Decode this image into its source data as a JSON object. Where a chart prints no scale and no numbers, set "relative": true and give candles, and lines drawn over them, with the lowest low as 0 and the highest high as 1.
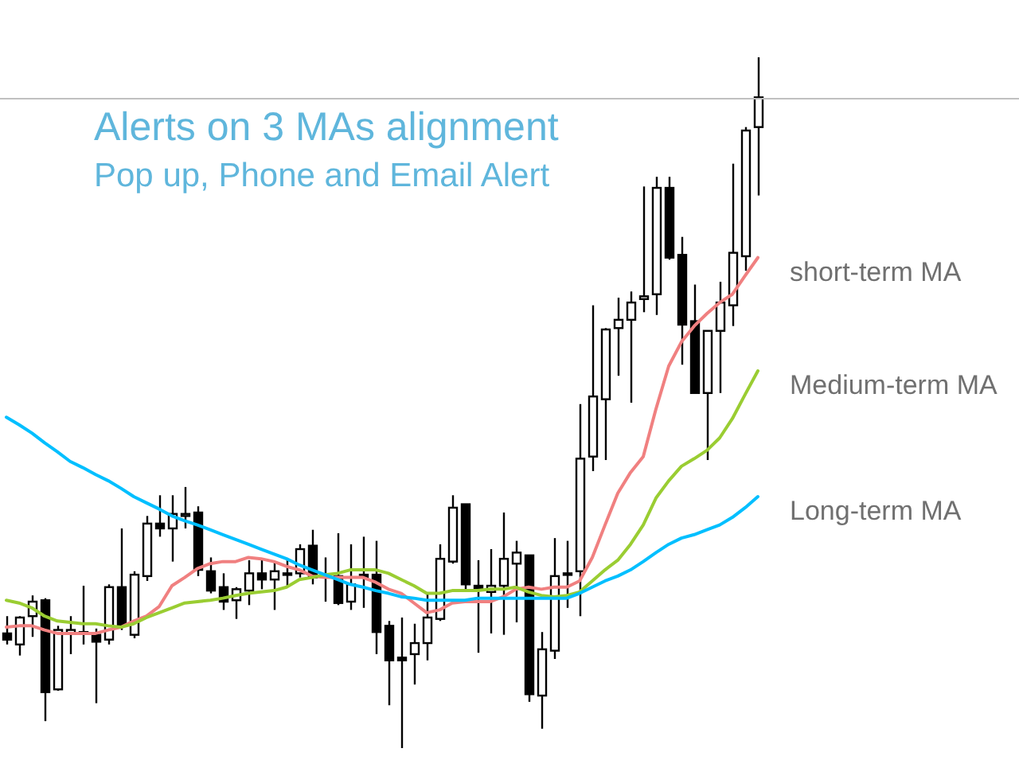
{
  "chart_data": {
    "type": "candlestick",
    "title": "Alerts on 3 MAs alignment",
    "subtitle": "Pop up, Phone and Email Alert",
    "relative": true,
    "categories": [
      null,
      null,
      null,
      null,
      null,
      null,
      null,
      null,
      null,
      null,
      null,
      null,
      null,
      null,
      null,
      null,
      null,
      null,
      null,
      null,
      null,
      null,
      null,
      null,
      null,
      null,
      null,
      null,
      null,
      null,
      null,
      null,
      null,
      null,
      null,
      null,
      null,
      null,
      null,
      null,
      null,
      null,
      null,
      null,
      null,
      null,
      null,
      null,
      null,
      null,
      null,
      null,
      null,
      null,
      null,
      null,
      null,
      null,
      null,
      null
    ],
    "ohlc": [
      [
        0.166,
        0.191,
        0.15,
        0.157
      ],
      [
        0.15,
        0.191,
        0.134,
        0.189
      ],
      [
        0.191,
        0.221,
        0.161,
        0.212
      ],
      [
        0.214,
        0.217,
        0.039,
        0.081
      ],
      [
        0.085,
        0.177,
        0.083,
        0.171
      ],
      [
        0.166,
        0.191,
        0.136,
        0.171
      ],
      [
        0.166,
        0.235,
        0.15,
        0.168
      ],
      [
        0.164,
        0.173,
        0.065,
        0.154
      ],
      [
        0.157,
        0.237,
        0.15,
        0.233
      ],
      [
        0.233,
        0.318,
        0.171,
        0.177
      ],
      [
        0.164,
        0.256,
        0.159,
        0.251
      ],
      [
        0.249,
        0.336,
        0.242,
        0.325
      ],
      [
        0.325,
        0.366,
        0.306,
        0.318
      ],
      [
        0.318,
        0.366,
        0.27,
        0.339
      ],
      [
        0.336,
        0.378,
        0.318,
        0.339
      ],
      [
        0.341,
        0.35,
        0.249,
        0.258
      ],
      [
        0.256,
        0.276,
        0.224,
        0.228
      ],
      [
        0.233,
        0.253,
        0.2,
        0.212
      ],
      [
        0.214,
        0.233,
        0.187,
        0.23
      ],
      [
        0.228,
        0.272,
        0.207,
        0.253
      ],
      [
        0.253,
        0.272,
        0.23,
        0.244
      ],
      [
        0.244,
        0.27,
        0.2,
        0.256
      ],
      [
        0.251,
        0.272,
        0.233,
        0.253
      ],
      [
        0.253,
        0.295,
        0.247,
        0.288
      ],
      [
        0.293,
        0.316,
        0.237,
        0.247
      ],
      [
        0.251,
        0.276,
        0.212,
        0.249
      ],
      [
        0.249,
        0.311,
        0.207,
        0.21
      ],
      [
        0.212,
        0.295,
        0.2,
        0.237
      ],
      [
        0.251,
        0.306,
        0.203,
        0.247
      ],
      [
        0.251,
        0.3,
        0.136,
        0.168
      ],
      [
        0.177,
        0.184,
        0.062,
        0.127
      ],
      [
        0.131,
        0.189,
        0,
        0.127
      ],
      [
        0.136,
        0.18,
        0.092,
        0.152
      ],
      [
        0.152,
        0.224,
        0.127,
        0.189
      ],
      [
        0.187,
        0.295,
        0.184,
        0.274
      ],
      [
        0.27,
        0.366,
        0.267,
        0.348
      ],
      [
        0.353,
        0.353,
        0.226,
        0.237
      ],
      [
        0.235,
        0.272,
        0.138,
        0.23
      ],
      [
        0.226,
        0.288,
        0.166,
        0.235
      ],
      [
        0.235,
        0.341,
        0.164,
        0.274
      ],
      [
        0.267,
        0.3,
        0.182,
        0.283
      ],
      [
        0.279,
        0.279,
        0.067,
        0.078
      ],
      [
        0.076,
        0.168,
        0.028,
        0.143
      ],
      [
        0.141,
        0.304,
        0.129,
        0.249
      ],
      [
        0.251,
        0.3,
        0.203,
        0.253
      ],
      [
        0.256,
        0.498,
        0.191,
        0.419
      ],
      [
        0.422,
        0.641,
        0.401,
        0.509
      ],
      [
        0.505,
        0.608,
        0.417,
        0.606
      ],
      [
        0.608,
        0.652,
        0.539,
        0.62
      ],
      [
        0.62,
        0.661,
        0.5,
        0.645
      ],
      [
        0.65,
        0.813,
        0.631,
        0.654
      ],
      [
        0.657,
        0.827,
        0.627,
        0.811
      ],
      [
        0.811,
        0.827,
        0.707,
        0.71
      ],
      [
        0.714,
        0.74,
        0.555,
        0.613
      ],
      [
        0.618,
        0.671,
        0.514,
        0.514
      ],
      [
        0.514,
        0.604,
        0.417,
        0.604
      ],
      [
        0.604,
        0.675,
        0.514,
        0.645
      ],
      [
        0.641,
        0.846,
        0.611,
        0.717
      ],
      [
        0.712,
        0.899,
        0.691,
        0.894
      ],
      [
        0.899,
        1,
        0.8,
        0.942
      ]
    ],
    "series": [
      {
        "name": "short-term MA",
        "type": "line",
        "color": "#f08080",
        "values": [
          0.175,
          0.177,
          0.177,
          0.171,
          0.166,
          0.166,
          0.166,
          0.166,
          0.171,
          0.175,
          0.184,
          0.191,
          0.205,
          0.235,
          0.247,
          0.26,
          0.267,
          0.27,
          0.27,
          0.276,
          0.274,
          0.27,
          0.263,
          0.258,
          0.249,
          0.247,
          0.247,
          0.247,
          0.247,
          0.24,
          0.23,
          0.224,
          0.21,
          0.196,
          0.2,
          0.21,
          0.212,
          0.212,
          0.212,
          0.219,
          0.23,
          0.233,
          0.23,
          0.233,
          0.233,
          0.242,
          0.276,
          0.323,
          0.369,
          0.399,
          0.422,
          0.491,
          0.553,
          0.588,
          0.611,
          0.629,
          0.645,
          0.657,
          0.684,
          0.71
        ]
      },
      {
        "name": "Medium-term MA",
        "type": "line",
        "color": "#9acd32",
        "values": [
          0.214,
          0.21,
          0.203,
          0.191,
          0.184,
          0.182,
          0.18,
          0.18,
          0.177,
          0.175,
          0.18,
          0.189,
          0.196,
          0.203,
          0.21,
          0.212,
          0.214,
          0.217,
          0.221,
          0.224,
          0.226,
          0.228,
          0.233,
          0.244,
          0.247,
          0.251,
          0.253,
          0.258,
          0.258,
          0.258,
          0.253,
          0.244,
          0.235,
          0.224,
          0.224,
          0.228,
          0.228,
          0.228,
          0.23,
          0.23,
          0.233,
          0.226,
          0.221,
          0.219,
          0.221,
          0.226,
          0.242,
          0.258,
          0.272,
          0.295,
          0.323,
          0.362,
          0.387,
          0.408,
          0.419,
          0.431,
          0.449,
          0.477,
          0.512,
          0.546
        ]
      },
      {
        "name": "Long-term MA",
        "type": "line",
        "color": "#00bfff",
        "values": [
          0.479,
          0.468,
          0.456,
          0.442,
          0.429,
          0.415,
          0.406,
          0.396,
          0.387,
          0.376,
          0.364,
          0.355,
          0.346,
          0.336,
          0.329,
          0.323,
          0.316,
          0.309,
          0.302,
          0.295,
          0.288,
          0.281,
          0.274,
          0.265,
          0.258,
          0.251,
          0.244,
          0.237,
          0.233,
          0.228,
          0.224,
          0.219,
          0.217,
          0.214,
          0.214,
          0.214,
          0.214,
          0.217,
          0.217,
          0.217,
          0.217,
          0.217,
          0.217,
          0.217,
          0.217,
          0.224,
          0.233,
          0.242,
          0.249,
          0.258,
          0.27,
          0.283,
          0.295,
          0.304,
          0.309,
          0.316,
          0.323,
          0.334,
          0.348,
          0.364
        ]
      }
    ],
    "ref_lines": [
      {
        "axis": "y",
        "value": 0.94,
        "color": "#c0c0c0"
      }
    ]
  }
}
